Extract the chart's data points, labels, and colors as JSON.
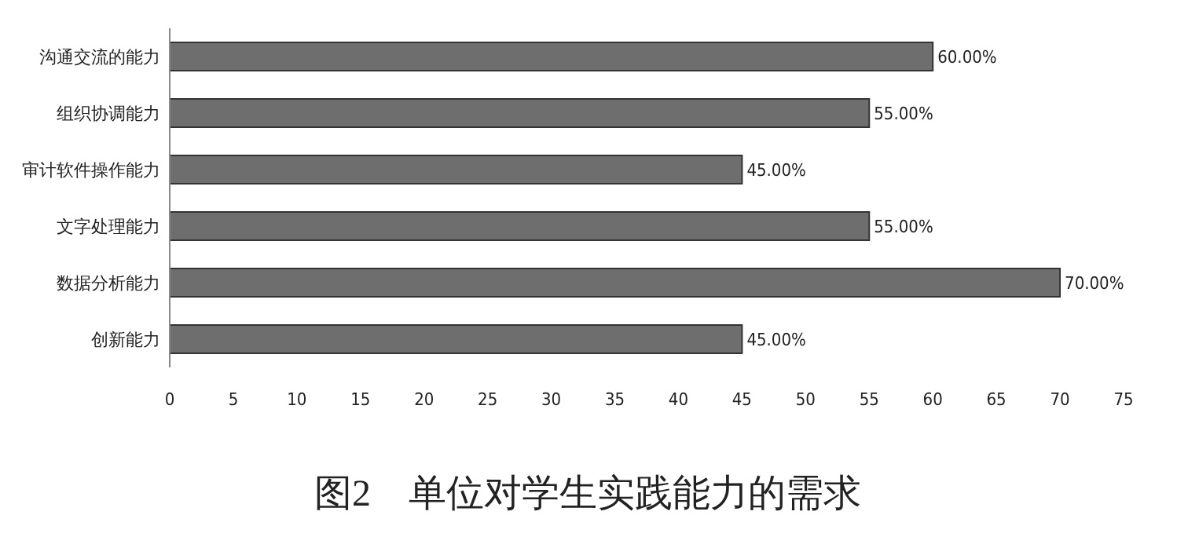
{
  "chart_data": {
    "type": "bar",
    "orientation": "horizontal",
    "title": "图2　单位对学生实践能力的需求",
    "categories": [
      "沟通交流的能力",
      "组织协调能力",
      "审计软件操作能力",
      "文字处理能力",
      "数据分析能力",
      "创新能力"
    ],
    "values": [
      60,
      55,
      45,
      55,
      70,
      45
    ],
    "value_labels": [
      "60.00%",
      "55.00%",
      "45.00%",
      "55.00%",
      "70.00%",
      "45.00%"
    ],
    "color": "#6e6e6e",
    "xlim": [
      0,
      75
    ],
    "xticks": [
      0,
      5,
      10,
      15,
      20,
      25,
      30,
      35,
      40,
      45,
      50,
      55,
      60,
      65,
      70,
      75
    ]
  }
}
